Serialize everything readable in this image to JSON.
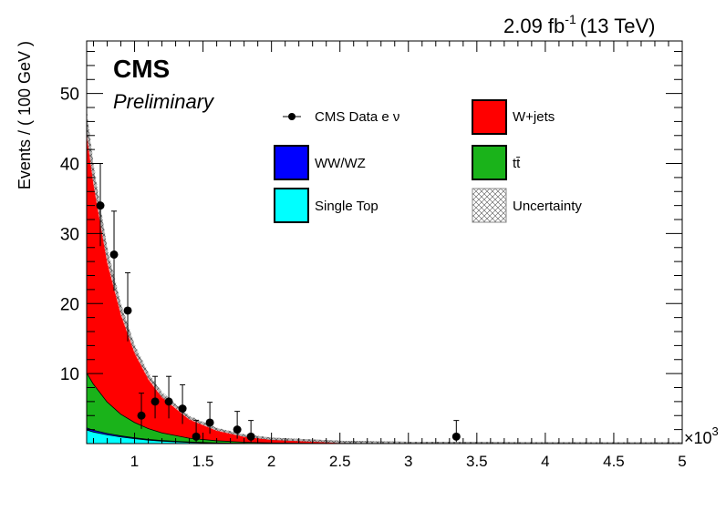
{
  "header": {
    "lumi_value": "2.09 fb",
    "lumi_exp": "-1",
    "lumi_energy": "(13 TeV)",
    "experiment": "CMS",
    "status": "Preliminary"
  },
  "colors": {
    "wjets": "#ff0000",
    "ttbar": "#1ab31a",
    "diboson": "#0000ff",
    "single_top": "#00ffff",
    "data": "#000000"
  },
  "chart_data": {
    "type": "area",
    "title": "",
    "xlabel": "",
    "ylabel": "Events / ( 100 GeV )",
    "x_multiplier": "×10",
    "x_multiplier_exp": "3",
    "xlim": [
      650,
      5000
    ],
    "ylim": [
      0,
      57.5
    ],
    "x_ticks": [
      1000,
      1500,
      2000,
      2500,
      3000,
      3500,
      4000,
      4500,
      5000
    ],
    "x_tick_labels": [
      "1",
      "1.5",
      "2",
      "2.5",
      "3",
      "3.5",
      "4",
      "4.5",
      "5"
    ],
    "y_ticks": [
      10,
      20,
      30,
      40,
      50
    ],
    "y_tick_labels": [
      "10",
      "20",
      "30",
      "40",
      "50"
    ],
    "grid": false,
    "legend_placement": "top-right",
    "legend": [
      {
        "label": "CMS Data e ν",
        "kind": "marker"
      },
      {
        "label": "W+jets",
        "kind": "box",
        "color": "#ff0000"
      },
      {
        "label": "WW/WZ",
        "kind": "box",
        "color": "#0000ff"
      },
      {
        "label": "tt̄",
        "kind": "box",
        "color": "#1ab31a"
      },
      {
        "label": "Single Top",
        "kind": "box",
        "color": "#00ffff"
      },
      {
        "label": "Uncertainty",
        "kind": "hatch"
      }
    ],
    "stack": [
      {
        "name": "Single Top",
        "color": "#00ffff",
        "x": [
          650,
          700,
          800,
          900,
          1000,
          1100,
          1200,
          1400,
          1600,
          1800,
          2000,
          2500,
          3000,
          3500,
          4000,
          4500,
          5000
        ],
        "y": [
          2.0,
          1.7,
          1.3,
          1.0,
          0.75,
          0.55,
          0.4,
          0.22,
          0.12,
          0.07,
          0.04,
          0.01,
          0.005,
          0.002,
          0.001,
          0.0,
          0.0
        ]
      },
      {
        "name": "WW/WZ",
        "color": "#0000ff",
        "x": [
          650,
          700,
          800,
          900,
          1000,
          1100,
          1200,
          1400,
          1600,
          1800,
          2000,
          2500,
          3000,
          3500,
          4000,
          4500,
          5000
        ],
        "y": [
          0.3,
          0.25,
          0.2,
          0.15,
          0.12,
          0.1,
          0.08,
          0.05,
          0.03,
          0.02,
          0.01,
          0.005,
          0.0,
          0.0,
          0.0,
          0.0,
          0.0
        ]
      },
      {
        "name": "tt̄",
        "color": "#1ab31a",
        "x": [
          650,
          700,
          800,
          900,
          1000,
          1100,
          1200,
          1400,
          1600,
          1800,
          2000,
          2500,
          3000,
          3500,
          4000,
          4500,
          5000
        ],
        "y": [
          7.9,
          6.6,
          4.5,
          3.1,
          2.2,
          1.55,
          1.1,
          0.55,
          0.3,
          0.16,
          0.09,
          0.03,
          0.01,
          0.005,
          0.0,
          0.0,
          0.0
        ]
      },
      {
        "name": "W+jets",
        "color": "#ff0000",
        "x": [
          650,
          700,
          800,
          900,
          1000,
          1100,
          1200,
          1400,
          1600,
          1800,
          2000,
          2500,
          3000,
          3500,
          4000,
          4500,
          5000
        ],
        "y": [
          35.8,
          30.0,
          21.0,
          15.0,
          10.5,
          7.5,
          5.4,
          2.9,
          1.6,
          0.9,
          0.55,
          0.2,
          0.09,
          0.05,
          0.03,
          0.02,
          0.01
        ]
      }
    ],
    "data_points": [
      {
        "x": 750,
        "y": 34,
        "err_up": 6.0,
        "err_down": 5.8
      },
      {
        "x": 850,
        "y": 27,
        "err_up": 6.2,
        "err_down": 5.2
      },
      {
        "x": 950,
        "y": 19,
        "err_up": 5.4,
        "err_down": 4.4
      },
      {
        "x": 1050,
        "y": 4,
        "err_up": 3.2,
        "err_down": 1.9
      },
      {
        "x": 1150,
        "y": 6,
        "err_up": 3.6,
        "err_down": 2.4
      },
      {
        "x": 1250,
        "y": 6,
        "err_up": 3.6,
        "err_down": 2.4
      },
      {
        "x": 1350,
        "y": 5,
        "err_up": 3.4,
        "err_down": 2.2
      },
      {
        "x": 1450,
        "y": 1,
        "err_up": 2.3,
        "err_down": 0.8
      },
      {
        "x": 1550,
        "y": 3,
        "err_up": 2.9,
        "err_down": 1.6
      },
      {
        "x": 1750,
        "y": 2,
        "err_up": 2.6,
        "err_down": 1.3
      },
      {
        "x": 1850,
        "y": 1,
        "err_up": 2.3,
        "err_down": 0.8
      },
      {
        "x": 3350,
        "y": 1,
        "err_up": 2.3,
        "err_down": 0.8
      }
    ]
  }
}
